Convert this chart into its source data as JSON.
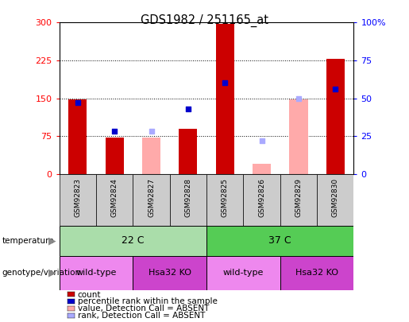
{
  "title": "GDS1982 / 251165_at",
  "samples": [
    "GSM92823",
    "GSM92824",
    "GSM92827",
    "GSM92828",
    "GSM92825",
    "GSM92826",
    "GSM92829",
    "GSM92830"
  ],
  "count_values": [
    148,
    72,
    null,
    90,
    298,
    null,
    null,
    228
  ],
  "rank_values": [
    47,
    28,
    null,
    43,
    60,
    null,
    null,
    56
  ],
  "absent_value": [
    null,
    null,
    72,
    null,
    null,
    20,
    148,
    null
  ],
  "absent_rank": [
    null,
    null,
    28,
    null,
    null,
    22,
    50,
    null
  ],
  "left_yticks": [
    0,
    75,
    150,
    225,
    300
  ],
  "right_yticks": [
    0,
    25,
    50,
    75,
    100
  ],
  "bar_width": 0.5,
  "count_color": "#cc0000",
  "rank_color": "#0000cc",
  "absent_value_color": "#ffaaaa",
  "absent_rank_color": "#aaaaff",
  "temp_22_color": "#aaddaa",
  "temp_37_color": "#55cc55",
  "genotype_wt_color": "#ee88ee",
  "genotype_ko_color": "#cc44cc",
  "legend_items": [
    {
      "color": "#cc0000",
      "label": "count"
    },
    {
      "color": "#0000cc",
      "label": "percentile rank within the sample"
    },
    {
      "color": "#ffaaaa",
      "label": "value, Detection Call = ABSENT"
    },
    {
      "color": "#aaaaff",
      "label": "rank, Detection Call = ABSENT"
    }
  ]
}
